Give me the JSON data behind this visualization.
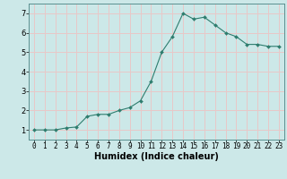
{
  "x": [
    0,
    1,
    2,
    3,
    4,
    5,
    6,
    7,
    8,
    9,
    10,
    11,
    12,
    13,
    14,
    15,
    16,
    17,
    18,
    19,
    20,
    21,
    22,
    23
  ],
  "y": [
    1.0,
    1.0,
    1.0,
    1.1,
    1.15,
    1.7,
    1.8,
    1.8,
    2.0,
    2.15,
    2.5,
    3.5,
    5.0,
    5.8,
    7.0,
    6.7,
    6.8,
    6.4,
    6.0,
    5.8,
    5.4,
    5.4,
    5.3,
    5.3
  ],
  "line_color": "#2e7d6e",
  "marker": "D",
  "marker_size": 2.0,
  "bg_color": "#cce8e8",
  "grid_color": "#e8c8c8",
  "xlabel": "Humidex (Indice chaleur)",
  "xlabel_fontsize": 7,
  "ylabel_ticks": [
    1,
    2,
    3,
    4,
    5,
    6,
    7
  ],
  "xlim": [
    -0.5,
    23.5
  ],
  "ylim": [
    0.5,
    7.5
  ],
  "xtick_labels": [
    "0",
    "1",
    "2",
    "3",
    "4",
    "5",
    "6",
    "7",
    "8",
    "9",
    "10",
    "11",
    "12",
    "13",
    "14",
    "15",
    "16",
    "17",
    "18",
    "19",
    "20",
    "21",
    "22",
    "23"
  ],
  "tick_fontsize": 5.5,
  "linewidth": 0.8
}
